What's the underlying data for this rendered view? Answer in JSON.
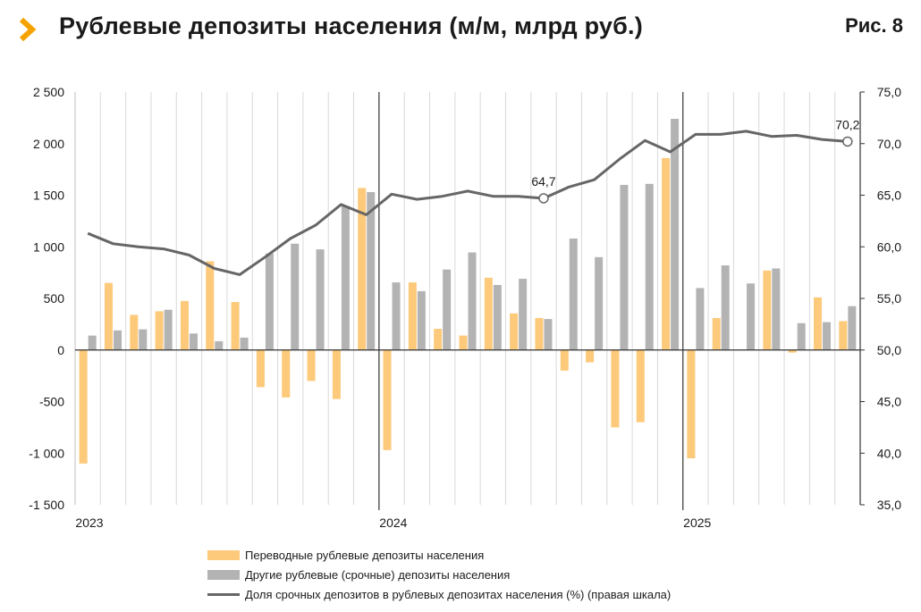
{
  "header": {
    "title": "Рублевые депозиты населения (м/м, млрд руб.)",
    "figure_label": "Рис. 8"
  },
  "colors": {
    "accent": "#f5a200",
    "transfer_bars": "#fdc97a",
    "term_bars": "#b3b3b3",
    "line": "#666666"
  },
  "chart_data": {
    "type": "bar",
    "title": "Рублевые депозиты населения (м/м, млрд руб.)",
    "y_left": {
      "min": -1500,
      "max": 2500,
      "step": 500
    },
    "y_right": {
      "min": 35.0,
      "max": 75.0,
      "step": 5.0
    },
    "y_left_ticks": [
      "2 500",
      "2 000",
      "1 500",
      "1 000",
      "500",
      "0",
      "-500",
      "-1 000",
      "-1 500"
    ],
    "y_right_ticks": [
      "75,0",
      "70,0",
      "65,0",
      "60,0",
      "55,0",
      "50,0",
      "45,0",
      "40,0",
      "35,0"
    ],
    "x_labels": [
      {
        "index": 0,
        "label": "2023"
      },
      {
        "index": 12,
        "label": "2024"
      },
      {
        "index": 24,
        "label": "2025"
      }
    ],
    "legend_position": "bottom",
    "series": [
      {
        "name": "Переводные рублевые депозиты населения",
        "kind": "bar",
        "values": [
          -1100,
          650,
          340,
          375,
          475,
          860,
          465,
          -360,
          -460,
          -300,
          -475,
          1570,
          -970,
          655,
          205,
          140,
          700,
          355,
          310,
          -200,
          -120,
          -750,
          -700,
          1860,
          -1050,
          310,
          5,
          770,
          -25,
          510,
          280
        ]
      },
      {
        "name": "Другие рублевые (срочные) депозиты населения",
        "kind": "bar",
        "values": [
          140,
          190,
          200,
          390,
          160,
          85,
          120,
          935,
          1030,
          975,
          1395,
          1530,
          655,
          570,
          780,
          945,
          630,
          690,
          300,
          1080,
          900,
          1600,
          1610,
          2240,
          600,
          820,
          645,
          790,
          260,
          270,
          425
        ]
      },
      {
        "name": "Доля срочных депозитов в рублевых депозитах населения (%) (правая шкала)",
        "kind": "line",
        "axis": "right",
        "values": [
          61.3,
          60.3,
          60.0,
          59.8,
          59.2,
          57.9,
          57.3,
          59.0,
          60.8,
          62.1,
          64.1,
          63.1,
          65.1,
          64.6,
          64.9,
          65.4,
          64.9,
          64.9,
          64.7,
          65.8,
          66.5,
          68.5,
          70.3,
          69.2,
          70.9,
          70.9,
          71.2,
          70.7,
          70.8,
          70.4,
          70.2
        ]
      }
    ],
    "annotations": [
      {
        "index": 18,
        "text": "64,7"
      },
      {
        "index": 30,
        "text": "70,2"
      }
    ]
  }
}
